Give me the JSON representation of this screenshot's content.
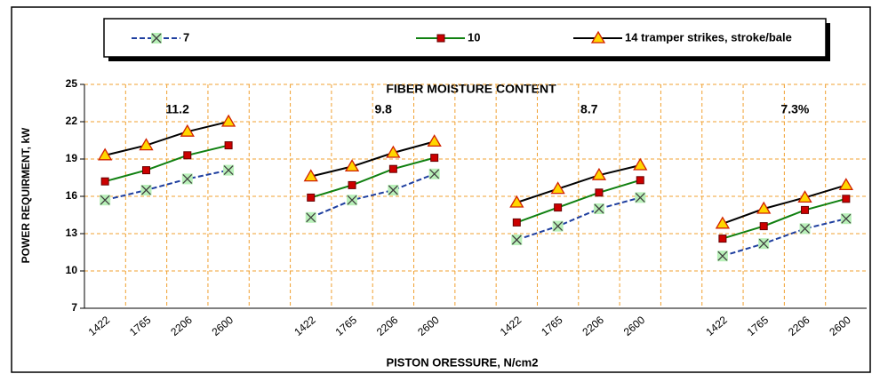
{
  "chart_data": {
    "type": "line",
    "annotations": [
      "FIBER MOISTURE CONTENT",
      "11.2",
      "9.8",
      "8.7",
      "7.3%"
    ],
    "x_label": "PISTON ORESSURE, N/cm2",
    "y_label": "POWER REQUIRMENT, kW",
    "categories": [
      "1422",
      "1765",
      "2206",
      "2600",
      null,
      "1422",
      "1765",
      "2206",
      "2600",
      null,
      "1422",
      "1765",
      "2206",
      "2600",
      null,
      "1422",
      "1765",
      "2206",
      "2600"
    ],
    "series": [
      {
        "name": "7",
        "color": "#1f3f9f",
        "dash": true,
        "marker": "x",
        "marker_color": "#b8f0b8",
        "values": [
          15.7,
          16.5,
          17.4,
          18.1,
          null,
          14.3,
          15.7,
          16.5,
          17.8,
          null,
          12.5,
          13.6,
          15.0,
          15.9,
          null,
          11.2,
          12.2,
          13.4,
          14.2
        ]
      },
      {
        "name": "10",
        "color": "#108010",
        "dash": false,
        "marker": "square",
        "marker_color": "#cc0000",
        "values": [
          17.2,
          18.1,
          19.3,
          20.1,
          null,
          15.9,
          16.9,
          18.2,
          19.1,
          null,
          13.9,
          15.1,
          16.3,
          17.3,
          null,
          12.6,
          13.6,
          14.9,
          15.8
        ]
      },
      {
        "name": "14 tramper strikes, stroke/bale",
        "color": "#000000",
        "dash": false,
        "marker": "triangle",
        "marker_color": "#ffd700",
        "values": [
          19.3,
          20.1,
          21.2,
          22.0,
          null,
          17.6,
          18.4,
          19.5,
          20.4,
          null,
          15.5,
          16.6,
          17.7,
          18.5,
          null,
          13.8,
          15.0,
          15.9,
          16.9
        ]
      }
    ],
    "ylim": [
      7,
      25
    ],
    "yticks": [
      7,
      10,
      13,
      16,
      19,
      22,
      25
    ],
    "grid": true
  }
}
